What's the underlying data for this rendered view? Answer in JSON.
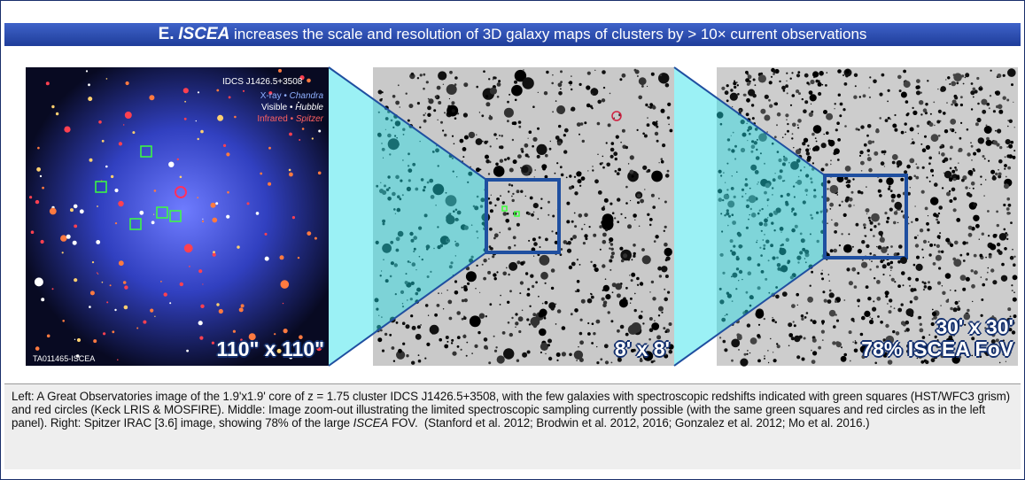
{
  "header": {
    "label": "E.",
    "emphasis": "ISCEA",
    "text": " increases the scale and resolution of 3D galaxy maps of clusters by > 10× current observations"
  },
  "panels": [
    {
      "label": "110\" x 110\"",
      "credit": "TA011465-ISCEA",
      "inset": {
        "target": "IDCS J1426.5+3508",
        "legend": [
          {
            "band": "X-ray • ",
            "instrument": "Chandra"
          },
          {
            "band": "Visible • ",
            "instrument": "Hubble"
          },
          {
            "band": "Infrared • ",
            "instrument": "Spitzer"
          }
        ]
      }
    },
    {
      "label": "8' x 8'"
    },
    {
      "label": "30' x 30'",
      "sublabel": "78% ISCEA FoV"
    }
  ],
  "caption": {
    "parts": [
      "Left: A Great Observatories image of the 1.9'x1.9' core of z = 1.75 cluster IDCS J1426.5+3508, with the few galaxies with spectroscopic redshifts indicated with green squares (HST/WFC3 grism) and red circles (Keck LRIS & MOSFIRE). Middle: Image zoom-out illustrating the limited spectroscopic sampling currently possible (with the same green squares and red circles as in the left panel). Right: Spitzer IRAC [3.6] image, showing 78% of the large ",
      "ISCEA",
      " FOV.  (Stanford et al. 2012; Brodwin et al. 2012, 2016; Gonzalez et al. 2012; Mo et al. 2016.)"
    ]
  }
}
